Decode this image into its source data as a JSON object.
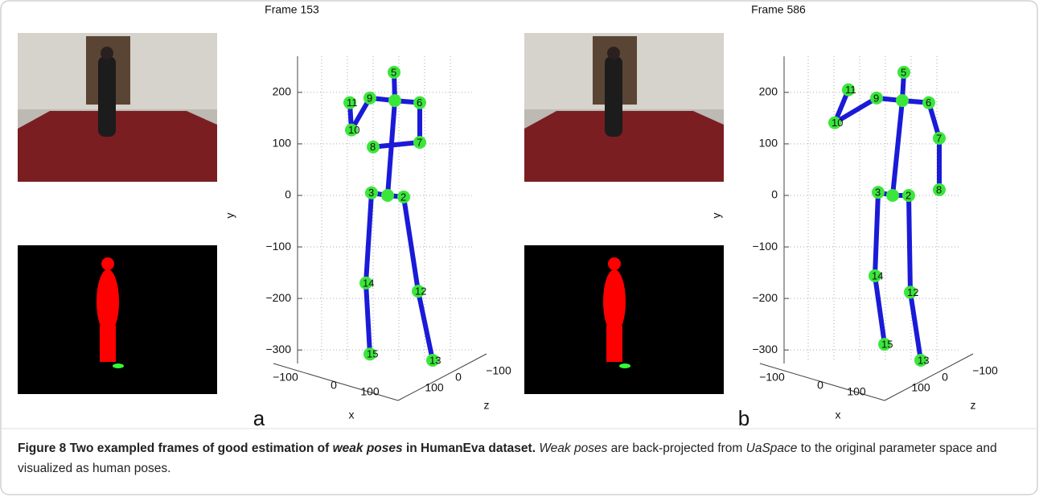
{
  "panels": [
    {
      "label": "a",
      "title": "Frame 153",
      "y_axis_label": "y",
      "x_axis_label": "x",
      "z_axis_label": "z",
      "ylim": [
        -320,
        270
      ],
      "yticks": [
        200,
        100,
        0,
        {
          "value": -100,
          "label": "−100"
        },
        {
          "value": -200,
          "label": "−200"
        },
        {
          "value": -300,
          "label": "−300"
        }
      ],
      "xticks": [
        {
          "value": -100,
          "label": "−100"
        },
        0,
        100
      ],
      "zticks": [
        {
          "value": -100,
          "label": "−100"
        },
        0,
        100
      ],
      "joints": [
        {
          "label": "5",
          "y": 239
        },
        {
          "label": null,
          "y": 184
        },
        {
          "label": "6",
          "y": 180
        },
        {
          "label": "7",
          "y": 103
        },
        {
          "label": "8",
          "y": 94
        },
        {
          "label": "9",
          "y": 189
        },
        {
          "label": "11",
          "y": 180
        },
        {
          "label": "10",
          "y": 127
        },
        {
          "label": null,
          "y": 0
        },
        {
          "label": "3",
          "y": 5
        },
        {
          "label": "2",
          "y": -3
        },
        {
          "label": "14",
          "y": -170
        },
        {
          "label": "12",
          "y": -186
        },
        {
          "label": "15",
          "y": -308
        },
        {
          "label": "13",
          "y": -320
        }
      ]
    },
    {
      "label": "b",
      "title": "Frame 586",
      "y_axis_label": "y",
      "x_axis_label": "x",
      "z_axis_label": "z",
      "ylim": [
        -320,
        270
      ],
      "yticks": [
        200,
        100,
        0,
        {
          "value": -100,
          "label": "−100"
        },
        {
          "value": -200,
          "label": "−200"
        },
        {
          "value": -300,
          "label": "−300"
        }
      ],
      "xticks": [
        {
          "value": -100,
          "label": "−100"
        },
        0,
        100
      ],
      "zticks": [
        {
          "value": -100,
          "label": "−100"
        },
        0,
        100
      ],
      "joints": [
        {
          "label": "5",
          "y": 239
        },
        {
          "label": null,
          "y": 184
        },
        {
          "label": "6",
          "y": 180
        },
        {
          "label": "7",
          "y": 111
        },
        {
          "label": "8",
          "y": 11
        },
        {
          "label": "9",
          "y": 189
        },
        {
          "label": "11",
          "y": 205
        },
        {
          "label": "10",
          "y": 141
        },
        {
          "label": null,
          "y": 0
        },
        {
          "label": "3",
          "y": 6
        },
        {
          "label": "2",
          "y": 0
        },
        {
          "label": "14",
          "y": -156
        },
        {
          "label": "12",
          "y": -188
        },
        {
          "label": "15",
          "y": -289
        },
        {
          "label": "13",
          "y": -320
        }
      ]
    }
  ],
  "caption": {
    "label": "Figure 8",
    "title": [
      "Two exampled frames of good estimation of",
      "weak poses",
      "in HumanEva dataset."
    ],
    "text": [
      "Weak poses",
      "are back-projected from",
      "UaSpace",
      "to the original parameter space and visualized as human poses."
    ]
  }
}
